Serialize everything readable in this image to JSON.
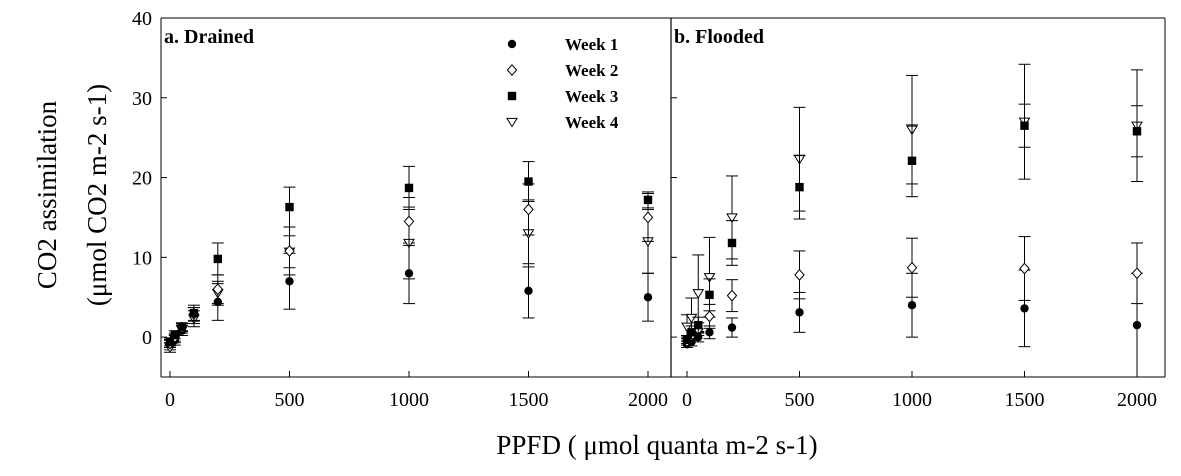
{
  "chart_data": {
    "type": "scatter",
    "xlabel": "PPFD ( μmol quanta m-2 s-1)",
    "ylabel_line1": "CO2 assimilation",
    "ylabel_line2": "(μmol CO2 m-2 s-1)",
    "ylim": [
      -5,
      40
    ],
    "y_ticks": [
      "0",
      "10",
      "20",
      "30",
      "40"
    ],
    "x_ticks": [
      "0",
      "500",
      "1000",
      "1500",
      "2000"
    ],
    "xlim": [
      -30,
      2100
    ],
    "legend_position": "top-right of left panel",
    "grid": false,
    "legend": [
      {
        "name": "Week 1",
        "marker": "filled-circle"
      },
      {
        "name": "Week 2",
        "marker": "open-diamond"
      },
      {
        "name": "Week 3",
        "marker": "filled-square"
      },
      {
        "name": "Week 4",
        "marker": "open-triangle-down"
      }
    ],
    "panels": [
      {
        "title": "a. Drained",
        "series": [
          {
            "name": "Week 1",
            "points": [
              {
                "x": 0,
                "y": -1.0,
                "err": 0.6
              },
              {
                "x": 20,
                "y": -0.4,
                "err": 0.6
              },
              {
                "x": 50,
                "y": 0.8,
                "err": 0.6
              },
              {
                "x": 100,
                "y": 2.7,
                "err": 1.0
              },
              {
                "x": 200,
                "y": 4.4,
                "err": 2.3
              },
              {
                "x": 500,
                "y": 7.0,
                "err": 3.5
              },
              {
                "x": 1000,
                "y": 8.0,
                "err": 3.8
              },
              {
                "x": 1500,
                "y": 5.8,
                "err": 3.4
              },
              {
                "x": 2000,
                "y": 5.0,
                "err": 3.0
              }
            ]
          },
          {
            "name": "Week 2",
            "points": [
              {
                "x": 0,
                "y": -0.8,
                "err": 0.5
              },
              {
                "x": 20,
                "y": 0.0,
                "err": 0.5
              },
              {
                "x": 50,
                "y": 1.2,
                "err": 0.5
              },
              {
                "x": 100,
                "y": 2.9,
                "err": 0.8
              },
              {
                "x": 200,
                "y": 6.0,
                "err": 1.8
              },
              {
                "x": 500,
                "y": 10.8,
                "err": 3.0
              },
              {
                "x": 1000,
                "y": 14.5,
                "err": 3.0
              },
              {
                "x": 1500,
                "y": 16.0,
                "err": 3.2
              },
              {
                "x": 2000,
                "y": 15.0,
                "err": 3.0
              }
            ]
          },
          {
            "name": "Week 3",
            "points": [
              {
                "x": 0,
                "y": -0.6,
                "err": 0.5
              },
              {
                "x": 20,
                "y": 0.3,
                "err": 0.5
              },
              {
                "x": 50,
                "y": 1.3,
                "err": 0.5
              },
              {
                "x": 100,
                "y": 3.0,
                "err": 1.0
              },
              {
                "x": 200,
                "y": 9.8,
                "err": 2.0
              },
              {
                "x": 500,
                "y": 16.3,
                "err": 2.5
              },
              {
                "x": 1000,
                "y": 18.7,
                "err": 2.7
              },
              {
                "x": 1500,
                "y": 19.5,
                "err": 2.5
              },
              {
                "x": 2000,
                "y": 17.2,
                "err": 1.0
              }
            ]
          },
          {
            "name": "Week 4",
            "points": [
              {
                "x": 0,
                "y": -1.3,
                "err": 0.6
              },
              {
                "x": 20,
                "y": -0.2,
                "err": 0.5
              },
              {
                "x": 50,
                "y": 1.0,
                "err": 0.5
              },
              {
                "x": 100,
                "y": 2.3,
                "err": 1.0
              },
              {
                "x": 200,
                "y": 5.5,
                "err": 1.5
              },
              {
                "x": 500,
                "y": 10.7,
                "err": 2.0
              },
              {
                "x": 1000,
                "y": 11.8,
                "err": 4.5
              },
              {
                "x": 1500,
                "y": 13.0,
                "err": 4.2
              },
              {
                "x": 2000,
                "y": 12.0,
                "err": 4.0
              }
            ]
          }
        ]
      },
      {
        "title": "b. Flooded",
        "series": [
          {
            "name": "Week 1",
            "points": [
              {
                "x": 0,
                "y": -0.9,
                "err": 0.4
              },
              {
                "x": 20,
                "y": -0.6,
                "err": 0.5
              },
              {
                "x": 50,
                "y": 0.0,
                "err": 0.6
              },
              {
                "x": 100,
                "y": 0.6,
                "err": 0.8
              },
              {
                "x": 200,
                "y": 1.2,
                "err": 1.2
              },
              {
                "x": 500,
                "y": 3.1,
                "err": 2.5
              },
              {
                "x": 1000,
                "y": 4.0,
                "err": 4.0
              },
              {
                "x": 1500,
                "y": 3.6,
                "err": 4.8
              },
              {
                "x": 2000,
                "y": 1.5,
                "err": 6.5
              }
            ]
          },
          {
            "name": "Week 2",
            "points": [
              {
                "x": 0,
                "y": -0.5,
                "err": 0.5
              },
              {
                "x": 20,
                "y": 0.2,
                "err": 0.6
              },
              {
                "x": 50,
                "y": 1.0,
                "err": 0.8
              },
              {
                "x": 100,
                "y": 2.6,
                "err": 1.5
              },
              {
                "x": 200,
                "y": 5.2,
                "err": 2.0
              },
              {
                "x": 500,
                "y": 7.8,
                "err": 3.0
              },
              {
                "x": 1000,
                "y": 8.7,
                "err": 3.7
              },
              {
                "x": 1500,
                "y": 8.6,
                "err": 4.0
              },
              {
                "x": 2000,
                "y": 8.0,
                "err": 3.8
              }
            ]
          },
          {
            "name": "Week 3",
            "points": [
              {
                "x": 0,
                "y": -0.3,
                "err": 0.5
              },
              {
                "x": 20,
                "y": 0.6,
                "err": 0.8
              },
              {
                "x": 50,
                "y": 1.5,
                "err": 1.0
              },
              {
                "x": 100,
                "y": 5.3,
                "err": 2.0
              },
              {
                "x": 200,
                "y": 11.8,
                "err": 2.8
              },
              {
                "x": 500,
                "y": 18.8,
                "err": 4.0
              },
              {
                "x": 1000,
                "y": 22.1,
                "err": 4.5
              },
              {
                "x": 1500,
                "y": 26.5,
                "err": 2.7
              },
              {
                "x": 2000,
                "y": 25.8,
                "err": 3.2
              }
            ]
          },
          {
            "name": "Week 4",
            "points": [
              {
                "x": 0,
                "y": 1.3,
                "err": 1.5
              },
              {
                "x": 20,
                "y": 2.4,
                "err": 2.5
              },
              {
                "x": 50,
                "y": 5.5,
                "err": 4.8
              },
              {
                "x": 100,
                "y": 7.5,
                "err": 5.0
              },
              {
                "x": 200,
                "y": 15.0,
                "err": 5.2
              },
              {
                "x": 500,
                "y": 22.3,
                "err": 6.5
              },
              {
                "x": 1000,
                "y": 26.0,
                "err": 6.8
              },
              {
                "x": 1500,
                "y": 27.0,
                "err": 7.2
              },
              {
                "x": 2000,
                "y": 26.5,
                "err": 7.0
              }
            ]
          }
        ]
      }
    ]
  }
}
